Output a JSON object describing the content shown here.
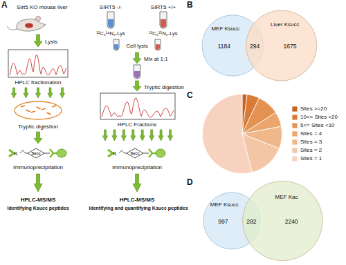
{
  "panel_labels": [
    "A",
    "B",
    "C",
    "D"
  ],
  "workflow_left": {
    "title": "Sirt5 KO mouse liver",
    "steps": [
      "Lysis",
      "HPLC fractionation",
      "Tryptic digestion",
      "Immunoprecipitation",
      "HPLC-MS/MS"
    ],
    "result": "Identifying Ksucc peptides"
  },
  "workflow_right": {
    "samples": [
      {
        "label": "SIRT5 -/-",
        "isotope": "¹²C₆¹⁴N₂-Lys"
      },
      {
        "label": "SIRT5 +/+",
        "isotope": "¹³C₆¹⁵N₂-Lys"
      }
    ],
    "steps": [
      "Cell lysis",
      "Mix at 1:1",
      "Tryptic digestion",
      "HPLC Fractions",
      "Immunoprecipitation",
      "HPLC-MS/MS"
    ],
    "result": "Identifying and quantifying Ksucc peptides"
  },
  "icon_labels": {
    "lysine": "K",
    "modification": "Succ"
  },
  "venn_b": {
    "left": {
      "label": "MEF Ksucc",
      "count": 1184,
      "color": "#dcebf7"
    },
    "overlap": 294,
    "right": {
      "label": "Liver Ksucc",
      "count": 1675,
      "color": "#fbdcc6"
    }
  },
  "chart_data": {
    "type": "pie",
    "categories": [
      "Sites >=20",
      "10<= Sites <20",
      "5<= Sites <10",
      "Sites = 4",
      "Sites = 3",
      "Sites = 2",
      "Sites = 1"
    ],
    "values": [
      2,
      5,
      9,
      6,
      9,
      15,
      54
    ],
    "colors": [
      "#c8621f",
      "#d97a37",
      "#e39252",
      "#eaa66d",
      "#efb78a",
      "#f3c6a6",
      "#f6d2bf"
    ],
    "legend": "right"
  },
  "venn_d": {
    "left": {
      "label": "MEF Ksucc",
      "count": 997,
      "color": "#dcebf7"
    },
    "overlap": 282,
    "right": {
      "label": "MEF Kac",
      "count": 2240,
      "color": "#e2edcc"
    }
  }
}
